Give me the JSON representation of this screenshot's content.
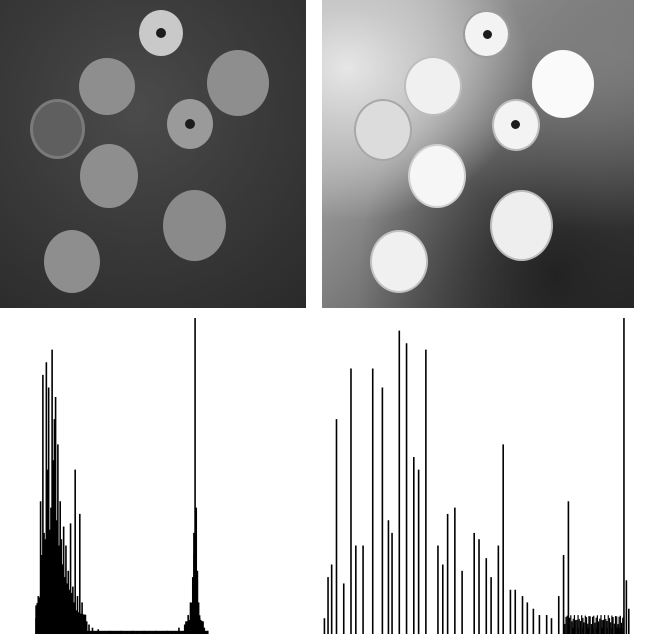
{
  "panels": {
    "original_image": {
      "description_name": "original-coins-image"
    },
    "equalized_image": {
      "description_name": "equalized-coins-image"
    }
  },
  "colors": {
    "coin_original": "#8e8e8e",
    "coin_equalized": "#f0f0f0",
    "histogram_bar": "#000000",
    "background": "#ffffff"
  },
  "chart_data": [
    {
      "type": "bar",
      "name": "",
      "xlim": [
        0,
        255
      ],
      "x": [
        26,
        28,
        30,
        31,
        32,
        33,
        34,
        35,
        36,
        37,
        38,
        39,
        40,
        41,
        42,
        43,
        44,
        45,
        46,
        47,
        48,
        49,
        50,
        51,
        52,
        53,
        54,
        55,
        56,
        57,
        58,
        59,
        60,
        62,
        64,
        66,
        68,
        70,
        72,
        75,
        80,
        90,
        100,
        110,
        120,
        130,
        140,
        150,
        155,
        158,
        160,
        162,
        163,
        164,
        165,
        166,
        167,
        168,
        170,
        172,
        175
      ],
      "y": [
        0.05,
        0.12,
        0.42,
        0.25,
        0.82,
        0.32,
        0.3,
        0.86,
        0.52,
        0.78,
        0.33,
        0.4,
        0.9,
        0.55,
        0.68,
        0.75,
        0.36,
        0.6,
        0.28,
        0.42,
        0.3,
        0.22,
        0.34,
        0.18,
        0.28,
        0.16,
        0.2,
        0.14,
        0.35,
        0.13,
        0.15,
        0.1,
        0.52,
        0.12,
        0.38,
        0.1,
        0.06,
        0.04,
        0.03,
        0.02,
        0.015,
        0.01,
        0.01,
        0.01,
        0.01,
        0.01,
        0.01,
        0.02,
        0.03,
        0.06,
        0.1,
        0.18,
        0.32,
        1.0,
        0.4,
        0.2,
        0.1,
        0.05,
        0.03,
        0.02,
        0.01
      ],
      "ylim": [
        0,
        1
      ]
    },
    {
      "type": "bar",
      "name": "",
      "xlim": [
        0,
        255
      ],
      "x": [
        2,
        5,
        8,
        12,
        18,
        24,
        28,
        34,
        42,
        50,
        55,
        58,
        64,
        70,
        76,
        80,
        86,
        96,
        100,
        104,
        110,
        116,
        126,
        130,
        136,
        140,
        146,
        150,
        156,
        160,
        166,
        170,
        175,
        180,
        186,
        190,
        196,
        200,
        204,
        208,
        212,
        216,
        220,
        224,
        228,
        232,
        236,
        240,
        244,
        246,
        248,
        250,
        252,
        254
      ],
      "y": [
        0.05,
        0.18,
        0.22,
        0.68,
        0.16,
        0.84,
        0.28,
        0.28,
        0.84,
        0.78,
        0.36,
        0.32,
        0.96,
        0.92,
        0.56,
        0.52,
        0.9,
        0.28,
        0.22,
        0.38,
        0.4,
        0.2,
        0.32,
        0.3,
        0.24,
        0.18,
        0.28,
        0.6,
        0.14,
        0.14,
        0.12,
        0.1,
        0.08,
        0.06,
        0.06,
        0.05,
        0.12,
        0.25,
        0.42,
        0.02,
        0.02,
        0.02,
        0.02,
        0.02,
        0.02,
        0.02,
        0.02,
        0.02,
        0.02,
        0.02,
        0.02,
        1.0,
        0.17,
        0.08
      ],
      "ylim": [
        0,
        1
      ]
    }
  ]
}
